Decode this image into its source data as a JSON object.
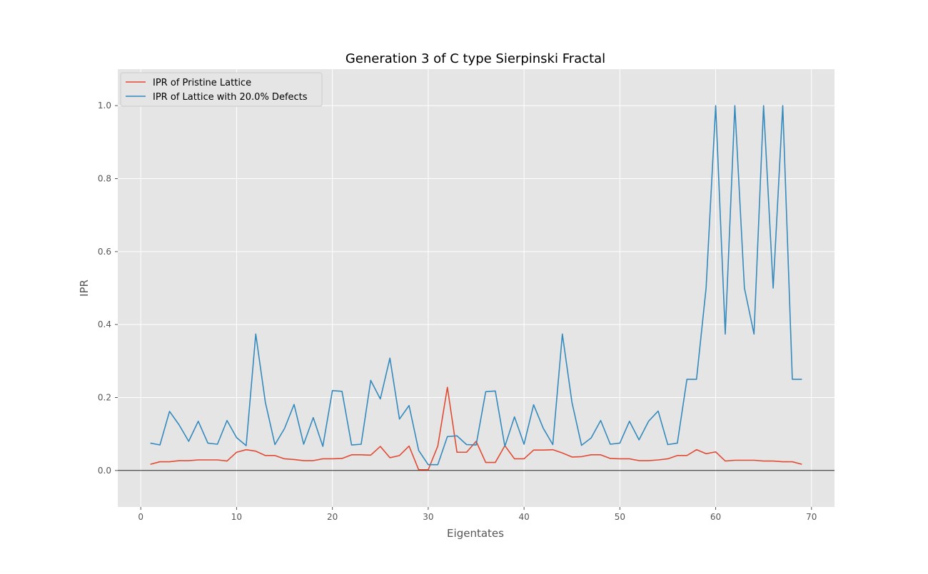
{
  "chart_data": {
    "type": "line",
    "title": "Generation 3 of C type Sierpinski Fractal",
    "xlabel": "Eigentates",
    "ylabel": "IPR",
    "xlim": [
      -2.4,
      72.4
    ],
    "ylim": [
      -0.1,
      1.1
    ],
    "xticks": [
      0,
      10,
      20,
      30,
      40,
      50,
      60,
      70
    ],
    "yticks": [
      0.0,
      0.2,
      0.4,
      0.6,
      0.8,
      1.0
    ],
    "grid": true,
    "legend_position": "upper left",
    "horizontal_reference_line": 0.0,
    "x": [
      1,
      2,
      3,
      4,
      5,
      6,
      7,
      8,
      9,
      10,
      11,
      12,
      13,
      14,
      15,
      16,
      17,
      18,
      19,
      20,
      21,
      22,
      23,
      24,
      25,
      26,
      27,
      28,
      29,
      30,
      31,
      32,
      33,
      34,
      35,
      36,
      37,
      38,
      39,
      40,
      41,
      42,
      43,
      44,
      45,
      46,
      47,
      48,
      49,
      50,
      51,
      52,
      53,
      54,
      55,
      56,
      57,
      58,
      59,
      60,
      61,
      62,
      63,
      64,
      65,
      66,
      67,
      68,
      69
    ],
    "series": [
      {
        "name": "IPR of Pristine Lattice",
        "color": "#E24A33",
        "values": [
          0.017,
          0.024,
          0.024,
          0.027,
          0.027,
          0.029,
          0.029,
          0.029,
          0.026,
          0.05,
          0.057,
          0.053,
          0.041,
          0.041,
          0.032,
          0.03,
          0.027,
          0.027,
          0.032,
          0.032,
          0.033,
          0.043,
          0.043,
          0.042,
          0.066,
          0.035,
          0.041,
          0.067,
          0.002,
          0.002,
          0.067,
          0.228,
          0.05,
          0.05,
          0.08,
          0.022,
          0.022,
          0.068,
          0.032,
          0.032,
          0.056,
          0.056,
          0.057,
          0.048,
          0.037,
          0.038,
          0.043,
          0.043,
          0.033,
          0.032,
          0.032,
          0.027,
          0.027,
          0.029,
          0.032,
          0.041,
          0.041,
          0.057,
          0.046,
          0.051,
          0.026,
          0.028,
          0.028,
          0.028,
          0.026,
          0.026,
          0.024,
          0.024,
          0.017
        ]
      },
      {
        "name": "IPR of Lattice with 20.0% Defects",
        "color": "#348ABD",
        "values": [
          0.075,
          0.07,
          0.162,
          0.125,
          0.08,
          0.135,
          0.075,
          0.072,
          0.137,
          0.09,
          0.068,
          0.374,
          0.187,
          0.071,
          0.115,
          0.181,
          0.072,
          0.145,
          0.066,
          0.219,
          0.217,
          0.07,
          0.072,
          0.247,
          0.196,
          0.308,
          0.141,
          0.178,
          0.055,
          0.016,
          0.016,
          0.093,
          0.095,
          0.071,
          0.07,
          0.216,
          0.218,
          0.066,
          0.147,
          0.072,
          0.18,
          0.116,
          0.071,
          0.374,
          0.187,
          0.069,
          0.089,
          0.137,
          0.072,
          0.075,
          0.135,
          0.084,
          0.135,
          0.163,
          0.071,
          0.075,
          0.25,
          0.25,
          0.5,
          1.0,
          0.374,
          1.0,
          0.5,
          0.374,
          1.0,
          0.5,
          1.0,
          0.25,
          0.25
        ]
      }
    ]
  }
}
